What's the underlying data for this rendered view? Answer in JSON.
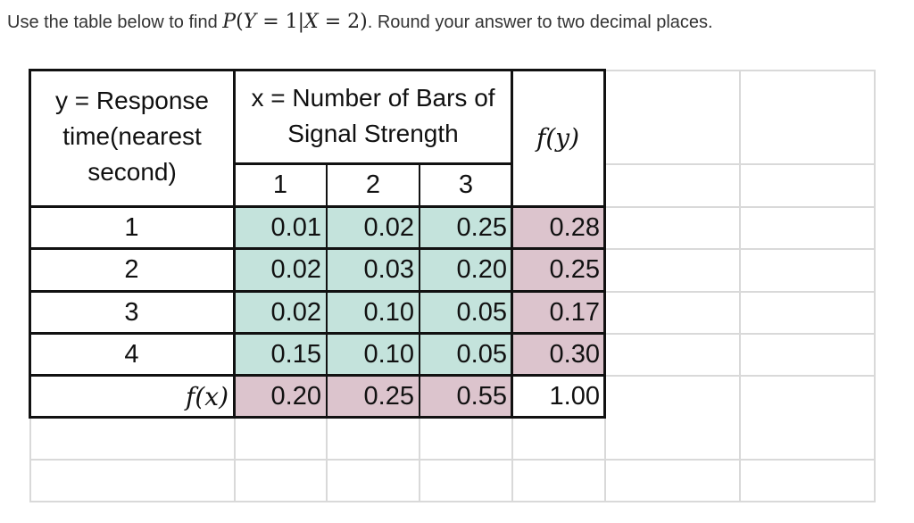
{
  "question": {
    "prefix": "Use the table below to find",
    "math": {
      "P": "P",
      "open": "(",
      "Y": "Y",
      "eq1": " = 1|",
      "X": "X",
      "eq2": " = 2)"
    },
    "suffix": ". Round your answer to  two decimal places."
  },
  "table": {
    "y_header": "y =  Response time(nearest second)",
    "x_header": "x =  Number of Bars of Signal Strength",
    "fy_header": "f(y)",
    "x_values": [
      "1",
      "2",
      "3"
    ],
    "rows": [
      {
        "y": "1",
        "cells": [
          "0.01",
          "0.02",
          "0.25"
        ],
        "fy": "0.28"
      },
      {
        "y": "2",
        "cells": [
          "0.02",
          "0.03",
          "0.20"
        ],
        "fy": "0.25"
      },
      {
        "y": "3",
        "cells": [
          "0.02",
          "0.10",
          "0.05"
        ],
        "fy": "0.17"
      },
      {
        "y": "4",
        "cells": [
          "0.15",
          "0.10",
          "0.05"
        ],
        "fy": "0.30"
      }
    ],
    "fx_row": {
      "label": "f(x)",
      "cells": [
        "0.20",
        "0.25",
        "0.55"
      ],
      "total": "1.00"
    }
  },
  "colors": {
    "joint": "#c4e3dc",
    "marginal": "#dcc4cd",
    "gridline": "#d9d9d9"
  }
}
